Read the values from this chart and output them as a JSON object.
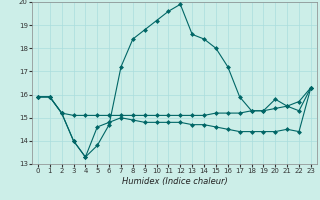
{
  "xlabel": "Humidex (Indice chaleur)",
  "bg_color": "#cceee8",
  "grid_color": "#aadddd",
  "line_color": "#006666",
  "xlim": [
    -0.5,
    23.5
  ],
  "ylim": [
    13,
    20
  ],
  "xticks": [
    0,
    1,
    2,
    3,
    4,
    5,
    6,
    7,
    8,
    9,
    10,
    11,
    12,
    13,
    14,
    15,
    16,
    17,
    18,
    19,
    20,
    21,
    22,
    23
  ],
  "yticks": [
    13,
    14,
    15,
    16,
    17,
    18,
    19,
    20
  ],
  "line1_x": [
    0,
    1,
    2,
    3,
    4,
    5,
    6,
    7,
    8,
    9,
    10,
    11,
    12,
    13,
    14,
    15,
    16,
    17,
    18,
    19,
    20,
    21,
    22,
    23
  ],
  "line1_y": [
    15.9,
    15.9,
    15.2,
    14.0,
    13.3,
    13.8,
    14.7,
    17.2,
    18.4,
    18.8,
    19.2,
    19.6,
    19.9,
    18.6,
    18.4,
    18.0,
    17.2,
    15.9,
    15.3,
    15.3,
    15.8,
    15.5,
    15.3,
    16.3
  ],
  "line2_x": [
    0,
    1,
    2,
    3,
    4,
    5,
    6,
    7,
    8,
    9,
    10,
    11,
    12,
    13,
    14,
    15,
    16,
    17,
    18,
    19,
    20,
    21,
    22,
    23
  ],
  "line2_y": [
    15.9,
    15.9,
    15.2,
    15.1,
    15.1,
    15.1,
    15.1,
    15.1,
    15.1,
    15.1,
    15.1,
    15.1,
    15.1,
    15.1,
    15.1,
    15.2,
    15.2,
    15.2,
    15.3,
    15.3,
    15.4,
    15.5,
    15.7,
    16.3
  ],
  "line3_x": [
    0,
    1,
    2,
    3,
    4,
    5,
    6,
    7,
    8,
    9,
    10,
    11,
    12,
    13,
    14,
    15,
    16,
    17,
    18,
    19,
    20,
    21,
    22,
    23
  ],
  "line3_y": [
    15.9,
    15.9,
    15.2,
    14.0,
    13.3,
    14.6,
    14.8,
    15.0,
    14.9,
    14.8,
    14.8,
    14.8,
    14.8,
    14.7,
    14.7,
    14.6,
    14.5,
    14.4,
    14.4,
    14.4,
    14.4,
    14.5,
    14.4,
    16.3
  ],
  "marker_size": 2.5,
  "tick_fontsize": 5.0,
  "xlabel_fontsize": 6.0,
  "linewidth": 0.8
}
